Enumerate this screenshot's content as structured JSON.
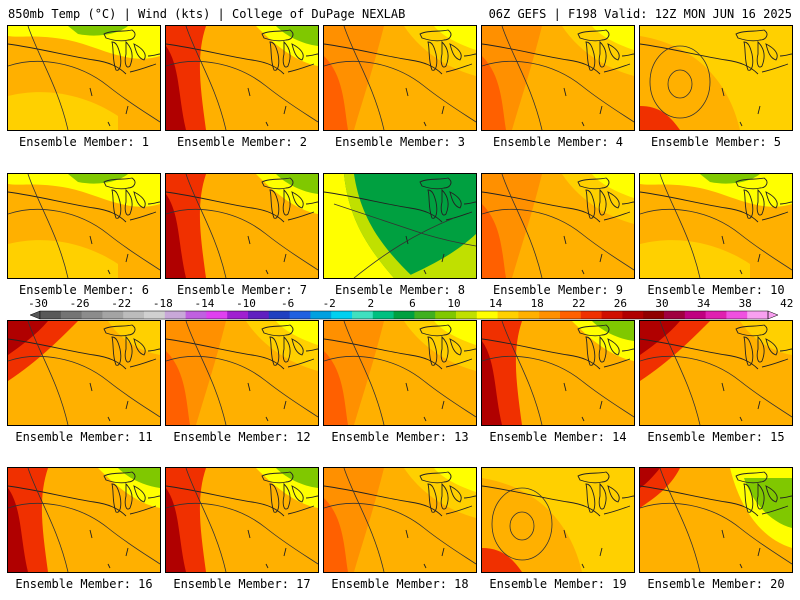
{
  "header": {
    "left": "850mb Temp (°C) | Wind (kts) | College of DuPage NEXLAB",
    "right": "06Z GEFS | F198 Valid: 12Z MON JUN 16 2025"
  },
  "caption_prefix": "Ensemble Member:",
  "members": [
    {
      "number": 1,
      "pattern": "a"
    },
    {
      "number": 2,
      "pattern": "b"
    },
    {
      "number": 3,
      "pattern": "c"
    },
    {
      "number": 4,
      "pattern": "c"
    },
    {
      "number": 5,
      "pattern": "e"
    },
    {
      "number": 6,
      "pattern": "a"
    },
    {
      "number": 7,
      "pattern": "b"
    },
    {
      "number": 8,
      "pattern": "f"
    },
    {
      "number": 9,
      "pattern": "c"
    },
    {
      "number": 10,
      "pattern": "a"
    },
    {
      "number": 11,
      "pattern": "d"
    },
    {
      "number": 12,
      "pattern": "c"
    },
    {
      "number": 13,
      "pattern": "c"
    },
    {
      "number": 14,
      "pattern": "b"
    },
    {
      "number": 15,
      "pattern": "d"
    },
    {
      "number": 16,
      "pattern": "b"
    },
    {
      "number": 17,
      "pattern": "b"
    },
    {
      "number": 18,
      "pattern": "c"
    },
    {
      "number": 19,
      "pattern": "e"
    },
    {
      "number": 20,
      "pattern": "g"
    }
  ],
  "colorbar": {
    "ticks": [
      "-30",
      "-26",
      "-22",
      "-18",
      "-14",
      "-10",
      "-6",
      "-2",
      "2",
      "6",
      "10",
      "14",
      "18",
      "22",
      "26",
      "30",
      "34",
      "38",
      "42"
    ],
    "colors": [
      "#585858",
      "#747474",
      "#8c8c8c",
      "#a4a4a4",
      "#bcbcbc",
      "#d0d0d0",
      "#c8a8d8",
      "#c060e0",
      "#e040f0",
      "#a020d0",
      "#6020c0",
      "#2040c0",
      "#2060e0",
      "#00a0e0",
      "#00d0f0",
      "#40e0c0",
      "#00c080",
      "#00a040",
      "#40b020",
      "#80c800",
      "#c0e000",
      "#ffff00",
      "#ffd000",
      "#ffb000",
      "#ff9000",
      "#ff6000",
      "#f03000",
      "#d01000",
      "#b00000",
      "#900000",
      "#a00040",
      "#c00080",
      "#e020b0",
      "#f050e0",
      "#f8a0f0"
    ]
  },
  "palette": {
    "yellow": "#ffff00",
    "light_orange": "#ffd000",
    "orange": "#ffb000",
    "dark_orange": "#ff9000",
    "orange_red": "#ff6000",
    "red": "#f03000",
    "dark_red": "#d01000",
    "maroon": "#b00000",
    "light_green": "#c0e000",
    "green": "#80c800",
    "dark_green": "#00a040",
    "olive": "#40b020"
  }
}
